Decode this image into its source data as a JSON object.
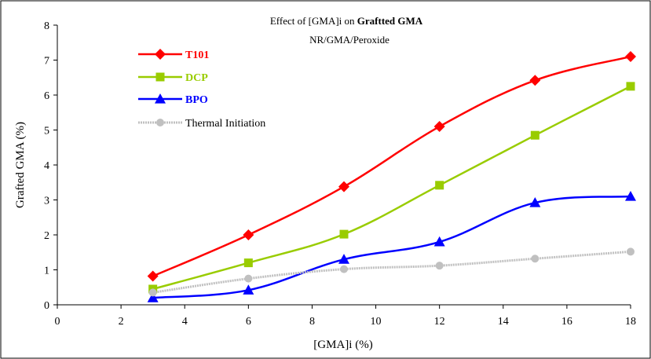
{
  "chart_data": {
    "type": "line",
    "title_plain": "Effect of [GMA]i on ",
    "title_bold": "Graftted GMA",
    "subtitle": "NR/GMA/Peroxide",
    "xlabel": "[GMA]i (%)",
    "ylabel": "Grafted GMA (%)",
    "xlim": [
      0,
      18
    ],
    "ylim": [
      0,
      8
    ],
    "xticks": [
      "0",
      "2",
      "4",
      "6",
      "8",
      "10",
      "12",
      "14",
      "16",
      "18"
    ],
    "yticks": [
      "0",
      "1",
      "2",
      "3",
      "4",
      "5",
      "6",
      "7",
      "8"
    ],
    "x": [
      3,
      6,
      9,
      12,
      15,
      18
    ],
    "grid": false,
    "legend_position": "top-left",
    "series": [
      {
        "name": "T101",
        "values": [
          0.82,
          2.0,
          3.38,
          5.1,
          6.42,
          7.1
        ],
        "color": "#ff0000",
        "marker": "diamond",
        "label_color": "#ff0000"
      },
      {
        "name": "DCP",
        "values": [
          0.45,
          1.2,
          2.02,
          3.42,
          4.85,
          6.25
        ],
        "color": "#99cc00",
        "marker": "square",
        "label_color": "#99cc00"
      },
      {
        "name": "BPO",
        "values": [
          0.2,
          0.42,
          1.3,
          1.8,
          2.92,
          3.1
        ],
        "color": "#0000ff",
        "marker": "triangle",
        "label_color": "#0000ff"
      },
      {
        "name": "Thermal Initiation",
        "values": [
          0.35,
          0.75,
          1.02,
          1.12,
          1.32,
          1.52
        ],
        "color": "#c0c0c0",
        "marker": "circle",
        "label_color": "#000000"
      }
    ]
  }
}
